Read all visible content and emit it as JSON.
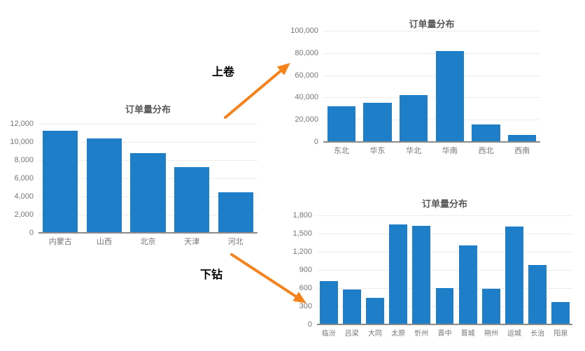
{
  "annotations": {
    "roll_up_label": "上卷",
    "drill_down_label": "下钻"
  },
  "colors": {
    "bar": "#1f7ec8",
    "grid": "#ececec",
    "axis": "#8a8a8a",
    "tick_label": "#757575",
    "title": "#595959",
    "arrow": "#f6821c"
  },
  "chart_data": [
    {
      "id": "orders-by-province",
      "type": "bar",
      "title": "订单量分布",
      "categories": [
        "内蒙古",
        "山西",
        "北京",
        "天津",
        "河北"
      ],
      "values": [
        11200,
        10400,
        8800,
        7250,
        4500
      ],
      "ylim": [
        0,
        12000
      ],
      "y_ticks": [
        0,
        2000,
        4000,
        6000,
        8000,
        10000,
        12000
      ],
      "xlabel": "",
      "ylabel": "",
      "grid": true,
      "legend": "none"
    },
    {
      "id": "orders-by-region",
      "type": "bar",
      "title": "订单量分布",
      "categories": [
        "东北",
        "华东",
        "华北",
        "华南",
        "西北",
        "西南"
      ],
      "values": [
        32000,
        35500,
        42000,
        82000,
        16000,
        6300
      ],
      "ylim": [
        0,
        100000
      ],
      "y_ticks": [
        0,
        20000,
        40000,
        60000,
        80000,
        100000
      ],
      "xlabel": "",
      "ylabel": "",
      "grid": true,
      "legend": "none"
    },
    {
      "id": "orders-by-city",
      "type": "bar",
      "title": "订单量分布",
      "categories": [
        "临汾",
        "吕梁",
        "大同",
        "太原",
        "忻州",
        "晋中",
        "晋城",
        "朔州",
        "运城",
        "长治",
        "阳泉"
      ],
      "values": [
        720,
        580,
        440,
        1650,
        1630,
        600,
        1300,
        590,
        1620,
        980,
        370
      ],
      "ylim": [
        0,
        1800
      ],
      "y_ticks": [
        0,
        300,
        600,
        900,
        1200,
        1500,
        1800
      ],
      "xlabel": "",
      "ylabel": "",
      "grid": true,
      "legend": "none"
    }
  ]
}
